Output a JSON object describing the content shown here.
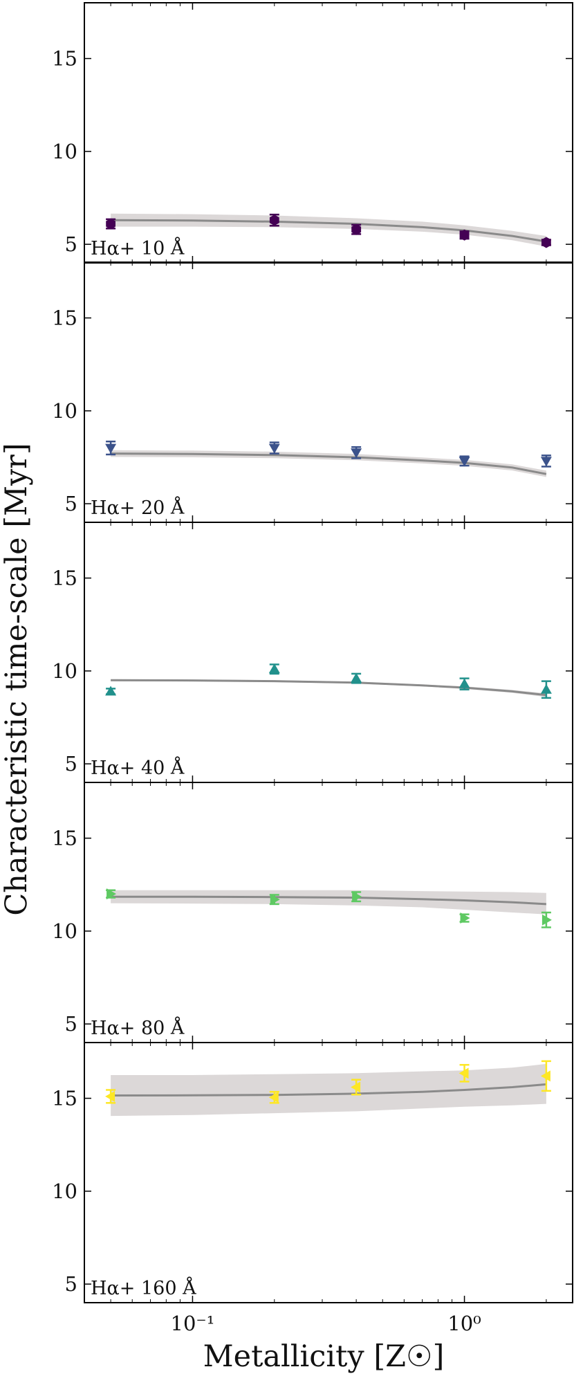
{
  "chart_data": {
    "type": "scatter",
    "ylabel": "Characteristic time-scale [Myr]",
    "xlabel": "Metallicity [Z☉]",
    "xscale": "log",
    "xlim": [
      0.04,
      2.5
    ],
    "ylim": [
      4,
      18
    ],
    "yticks": [
      5,
      10,
      15
    ],
    "ytick_labels": [
      "5",
      "10",
      "15"
    ],
    "xticks": [
      0.1,
      1
    ],
    "xtick_labels": [
      "10⁻¹",
      "10⁰"
    ],
    "legend_placement": "bottom-left (panel label)",
    "panels": [
      {
        "label": "Hα+ 10 Å",
        "marker": "hexagon",
        "color": "#440154",
        "x": [
          0.05,
          0.2,
          0.4,
          1.0,
          2.0
        ],
        "y": [
          6.1,
          6.3,
          5.8,
          5.5,
          5.1
        ],
        "yerr": [
          0.25,
          0.3,
          0.25,
          0.2,
          0.15
        ],
        "fit": {
          "x": [
            0.05,
            0.1,
            0.2,
            0.4,
            0.7,
            1.0,
            1.5,
            2.0
          ],
          "y": [
            6.3,
            6.28,
            6.22,
            6.1,
            5.92,
            5.75,
            5.45,
            5.15
          ]
        },
        "band": {
          "lower": [
            5.95,
            5.95,
            5.92,
            5.83,
            5.68,
            5.52,
            5.22,
            4.88
          ],
          "upper": [
            6.65,
            6.62,
            6.55,
            6.4,
            6.22,
            6.02,
            5.72,
            5.45
          ]
        }
      },
      {
        "label": "Hα+ 20 Å",
        "marker": "triangle-down",
        "color": "#3b528b",
        "x": [
          0.05,
          0.2,
          0.4,
          1.0,
          2.0
        ],
        "y": [
          8.0,
          8.0,
          7.75,
          7.3,
          7.3
        ],
        "yerr": [
          0.35,
          0.3,
          0.3,
          0.25,
          0.3
        ],
        "fit": {
          "x": [
            0.05,
            0.1,
            0.2,
            0.4,
            0.7,
            1.0,
            1.5,
            2.0
          ],
          "y": [
            7.7,
            7.68,
            7.62,
            7.5,
            7.33,
            7.2,
            6.95,
            6.6
          ]
        },
        "band": {
          "lower": [
            7.52,
            7.5,
            7.45,
            7.34,
            7.17,
            7.04,
            6.79,
            6.44
          ],
          "upper": [
            7.88,
            7.86,
            7.8,
            7.68,
            7.49,
            7.36,
            7.12,
            6.78
          ]
        }
      },
      {
        "label": "Hα+ 40 Å",
        "marker": "triangle-up",
        "color": "#21918c",
        "x": [
          0.05,
          0.2,
          0.4,
          1.0,
          2.0
        ],
        "y": [
          8.9,
          10.1,
          9.6,
          9.3,
          9.0
        ],
        "yerr": [
          0.15,
          0.25,
          0.25,
          0.3,
          0.45
        ],
        "fit": {
          "x": [
            0.05,
            0.1,
            0.2,
            0.4,
            0.7,
            1.0,
            1.5,
            2.0
          ],
          "y": [
            9.5,
            9.49,
            9.45,
            9.37,
            9.22,
            9.1,
            8.9,
            8.7
          ]
        },
        "band": {
          "lower": [
            9.45,
            9.44,
            9.4,
            9.32,
            9.17,
            9.03,
            8.82,
            8.6
          ],
          "upper": [
            9.55,
            9.54,
            9.5,
            9.42,
            9.27,
            9.17,
            8.98,
            8.8
          ]
        }
      },
      {
        "label": "Hα+ 80 Å",
        "marker": "triangle-right",
        "color": "#5ec962",
        "x": [
          0.05,
          0.2,
          0.4,
          1.0,
          2.0
        ],
        "y": [
          12.0,
          11.7,
          11.85,
          10.7,
          10.6
        ],
        "yerr": [
          0.2,
          0.25,
          0.25,
          0.2,
          0.4
        ],
        "fit": {
          "x": [
            0.05,
            0.1,
            0.2,
            0.4,
            0.7,
            1.0,
            1.5,
            2.0
          ],
          "y": [
            11.85,
            11.85,
            11.83,
            11.8,
            11.72,
            11.65,
            11.55,
            11.45
          ]
        },
        "band": {
          "lower": [
            11.5,
            11.48,
            11.45,
            11.38,
            11.28,
            11.15,
            11.0,
            10.9
          ],
          "upper": [
            12.2,
            12.2,
            12.2,
            12.2,
            12.15,
            12.13,
            12.1,
            12.05
          ]
        }
      },
      {
        "label": "Hα+ 160 Å",
        "marker": "triangle-left",
        "color": "#fde725",
        "x": [
          0.05,
          0.2,
          0.4,
          1.0,
          2.0
        ],
        "y": [
          15.1,
          15.05,
          15.6,
          16.35,
          16.2
        ],
        "yerr": [
          0.35,
          0.3,
          0.4,
          0.45,
          0.8
        ],
        "fit": {
          "x": [
            0.05,
            0.1,
            0.2,
            0.4,
            0.7,
            1.0,
            1.5,
            2.0
          ],
          "y": [
            15.15,
            15.16,
            15.18,
            15.25,
            15.35,
            15.45,
            15.6,
            15.75
          ]
        },
        "band": {
          "lower": [
            14.05,
            14.1,
            14.2,
            14.3,
            14.45,
            14.55,
            14.62,
            14.7
          ],
          "upper": [
            16.25,
            16.25,
            16.3,
            16.35,
            16.45,
            16.5,
            16.65,
            16.85
          ]
        }
      }
    ]
  }
}
